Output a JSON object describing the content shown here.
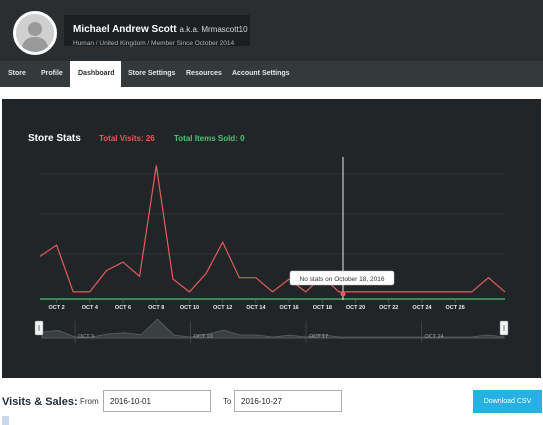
{
  "profile": {
    "name": "Michael Andrew Scott",
    "aka": "a.k.a. Mrmascott10",
    "subtitle": "Human / United Kingdom / Member Since October 2014"
  },
  "tabs": [
    {
      "label": "Store"
    },
    {
      "label": "Profile"
    },
    {
      "label": "Dashboard",
      "active": true
    },
    {
      "label": "Store Settings"
    },
    {
      "label": "Resources"
    },
    {
      "label": "Account Settings"
    }
  ],
  "stats": {
    "title": "Store Stats",
    "total_visits": "Total Visits: 26",
    "total_items": "Total Items Sold: 0",
    "tooltip": "No stats on October 18, 2016"
  },
  "chart_data": {
    "type": "line",
    "series": [
      {
        "values": [
          0.3,
          0.38,
          0.05,
          0.05,
          0.2,
          0.26,
          0.16,
          0.94,
          0.14,
          0.05,
          0.18,
          0.4,
          0.15,
          0.15,
          0.05,
          0.14,
          0.05,
          0.16,
          0.05,
          0.05,
          0.05,
          0.05,
          0.05,
          0.05,
          0.05,
          0.05,
          0.05,
          0.15,
          0.05
        ],
        "color": "#e55a5a"
      },
      {
        "values": [
          0,
          0,
          0,
          0,
          0,
          0,
          0,
          0,
          0,
          0,
          0,
          0,
          0,
          0,
          0,
          0,
          0,
          0,
          0,
          0,
          0,
          0,
          0,
          0,
          0,
          0,
          0,
          0,
          0
        ],
        "color": "#4cc277"
      }
    ],
    "x_tick_labels": [
      "OCT 2",
      "OCT 4",
      "OCT 6",
      "OCT 8",
      "OCT 10",
      "OCT 12",
      "OCT 14",
      "OCT 16",
      "OCT 18",
      "OCT 20",
      "OCT 22",
      "OCT 24",
      "OCT 26"
    ],
    "navigator_labels": [
      "OCT 3",
      "OCT 10",
      "OCT 17",
      "OCT 24"
    ],
    "grid": true,
    "crosshair_date": "OCT 18"
  },
  "controls": {
    "section_label": "Visits & Sales:",
    "from_label": "From",
    "from_value": "2016-10-01",
    "to_label": "To",
    "to_value": "2016-10-27",
    "download_label": "Download CSV"
  },
  "colors": {
    "header_bg": "#2a2e31",
    "panel_bg": "#212527",
    "visits_red": "#e55a5a",
    "items_green": "#4cc277",
    "csv_blue": "#27b1e3"
  }
}
